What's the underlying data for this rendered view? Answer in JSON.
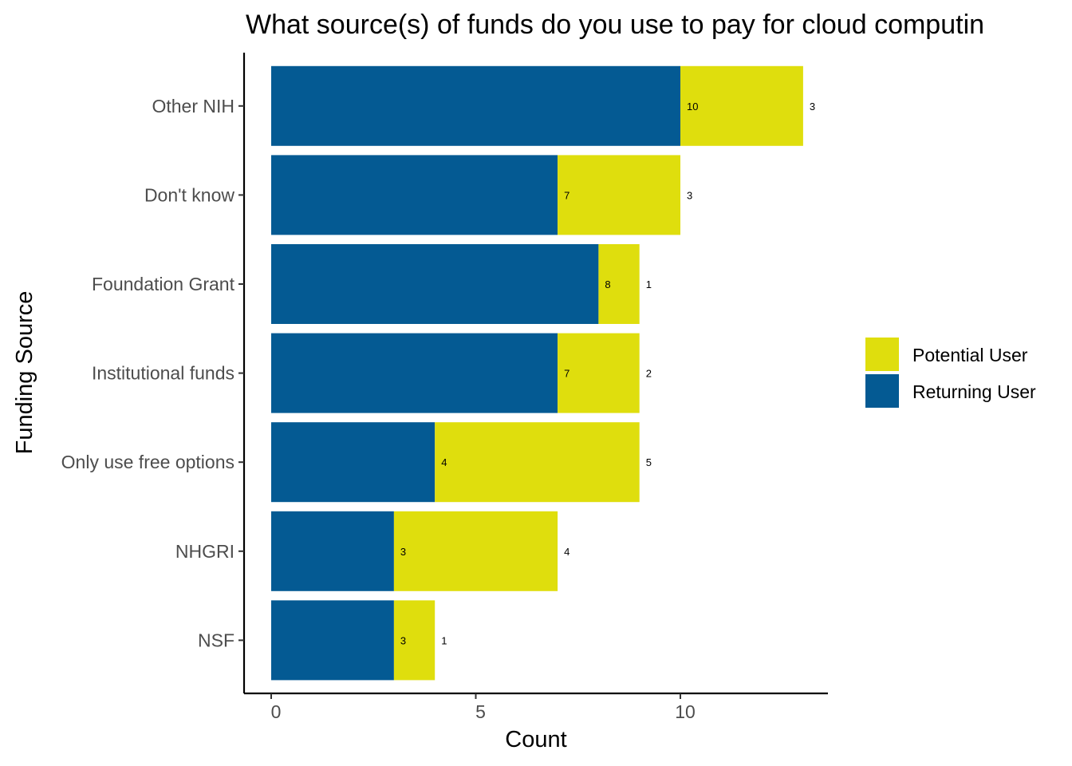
{
  "chart_data": {
    "type": "bar",
    "orientation": "horizontal",
    "stacked": true,
    "title": "What source(s) of funds do you use to pay for cloud computin",
    "xlabel": "Count",
    "ylabel": "Funding Source",
    "xlim": [
      0,
      13
    ],
    "xticks": [
      0,
      5,
      10
    ],
    "categories": [
      "Other NIH",
      "Don't know",
      "Foundation Grant",
      "Institutional funds",
      "Only use free options",
      "NHGRI",
      "NSF"
    ],
    "series": [
      {
        "name": "Returning User",
        "color": "#045a93",
        "values": [
          10,
          7,
          8,
          7,
          4,
          3,
          3
        ]
      },
      {
        "name": "Potential User",
        "color": "#dfde0d",
        "values": [
          3,
          3,
          1,
          2,
          5,
          4,
          1
        ]
      }
    ],
    "legend": {
      "placement": "right",
      "items": [
        "Potential User",
        "Returning User"
      ]
    },
    "grid": false
  }
}
